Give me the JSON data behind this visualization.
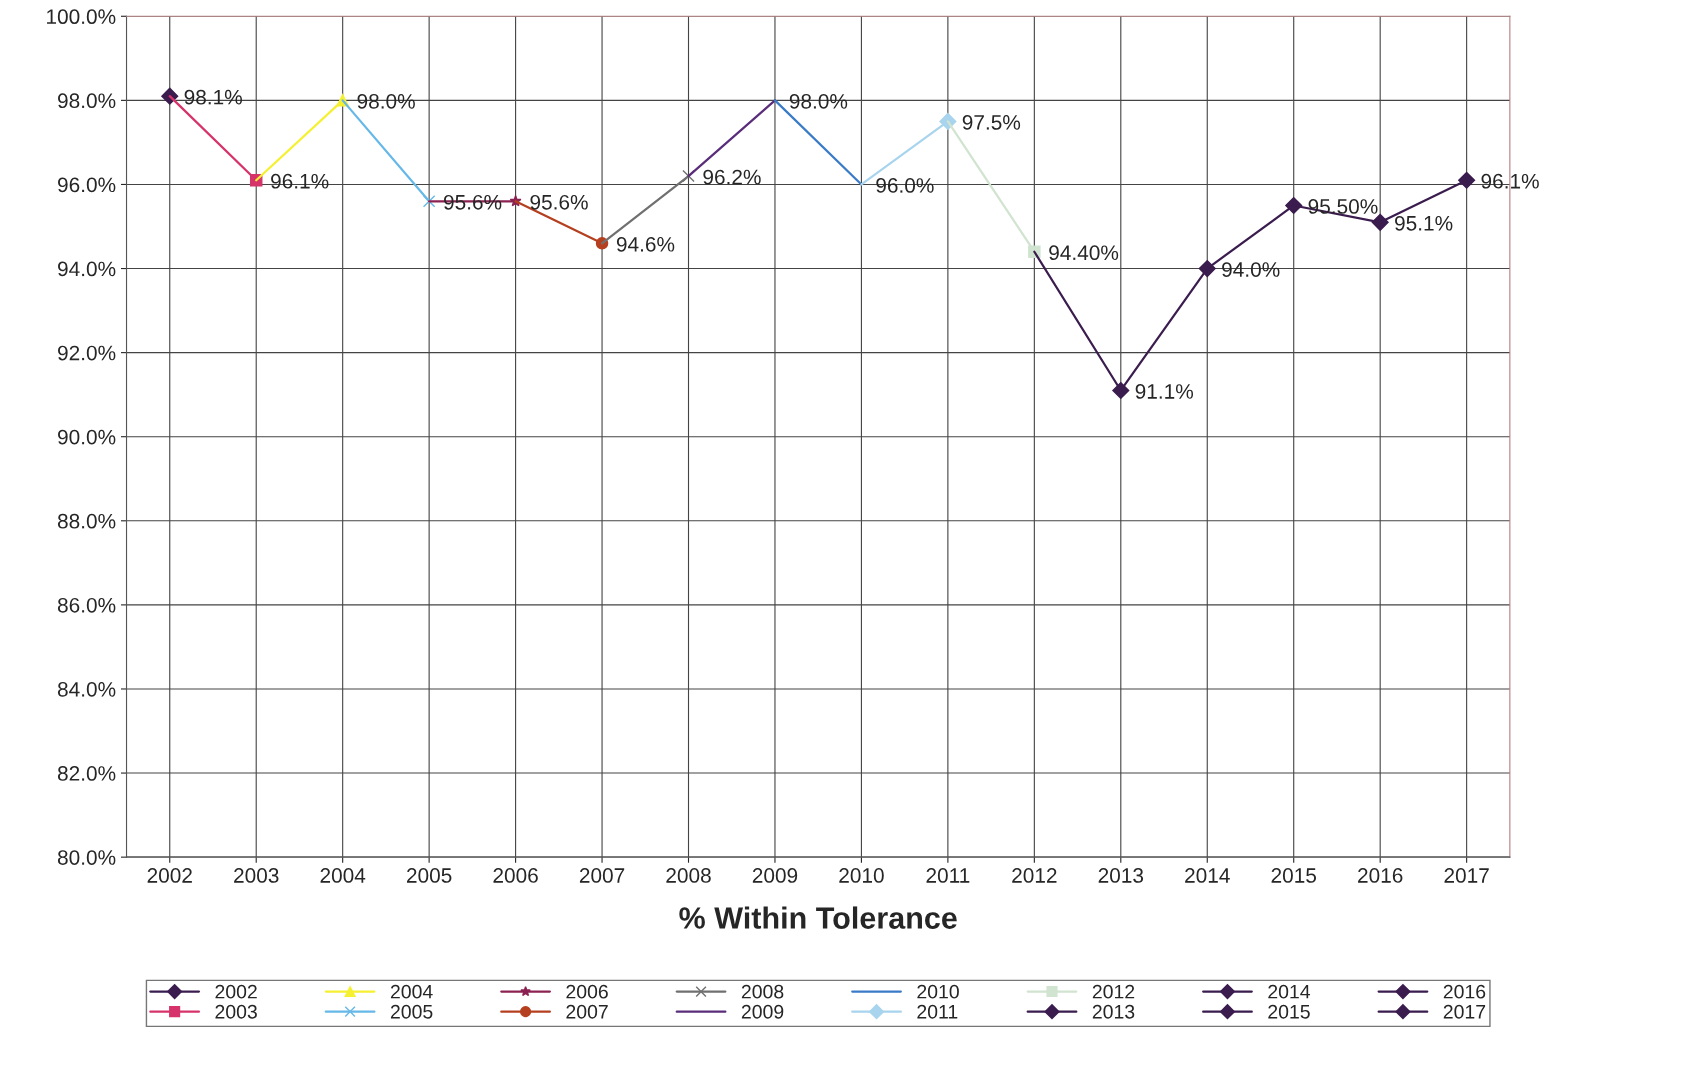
{
  "chart_data": {
    "type": "line",
    "xlabel": "% Within Tolerance",
    "categories": [
      "2002",
      "2003",
      "2004",
      "2005",
      "2006",
      "2007",
      "2008",
      "2009",
      "2010",
      "2011",
      "2012",
      "2013",
      "2014",
      "2015",
      "2016",
      "2017"
    ],
    "ylim": [
      80,
      100
    ],
    "yticks": [
      {
        "value": 80,
        "label": "80.0%"
      },
      {
        "value": 82,
        "label": "82.0%"
      },
      {
        "value": 84,
        "label": "84.0%"
      },
      {
        "value": 86,
        "label": "86.0%"
      },
      {
        "value": 88,
        "label": "88.0%"
      },
      {
        "value": 90,
        "label": "90.0%"
      },
      {
        "value": 92,
        "label": "92.0%"
      },
      {
        "value": 94,
        "label": "94.0%"
      },
      {
        "value": 96,
        "label": "96.0%"
      },
      {
        "value": 98,
        "label": "98.0%"
      },
      {
        "value": 100,
        "label": "100.0%"
      }
    ],
    "grid": true,
    "legend": "bottom",
    "series": [
      {
        "name": "2002",
        "color": "#3b1c4e",
        "marker": "diamond",
        "values": [
          98.1,
          null,
          null,
          null,
          null,
          null,
          null,
          null,
          null,
          null,
          null,
          null,
          null,
          null,
          null,
          null
        ],
        "value_labels": [
          "98.1%",
          null,
          null,
          null,
          null,
          null,
          null,
          null,
          null,
          null,
          null,
          null,
          null,
          null,
          null,
          null
        ]
      },
      {
        "name": "2003",
        "color": "#d6336b",
        "marker": "square",
        "values": [
          98.1,
          96.1,
          null,
          null,
          null,
          null,
          null,
          null,
          null,
          null,
          null,
          null,
          null,
          null,
          null,
          null
        ],
        "value_labels": [
          null,
          "96.1%",
          null,
          null,
          null,
          null,
          null,
          null,
          null,
          null,
          null,
          null,
          null,
          null,
          null,
          null
        ]
      },
      {
        "name": "2004",
        "color": "#f5f032",
        "marker": "triangle",
        "values": [
          null,
          96.1,
          98.0,
          null,
          null,
          null,
          null,
          null,
          null,
          null,
          null,
          null,
          null,
          null,
          null,
          null
        ],
        "value_labels": [
          null,
          null,
          "98.0%",
          null,
          null,
          null,
          null,
          null,
          null,
          null,
          null,
          null,
          null,
          null,
          null,
          null
        ]
      },
      {
        "name": "2005",
        "color": "#66b8e8",
        "marker": "cross",
        "values": [
          null,
          null,
          98.0,
          95.6,
          null,
          null,
          null,
          null,
          null,
          null,
          null,
          null,
          null,
          null,
          null,
          null
        ],
        "value_labels": [
          null,
          null,
          null,
          "95.6%",
          null,
          null,
          null,
          null,
          null,
          null,
          null,
          null,
          null,
          null,
          null,
          null
        ]
      },
      {
        "name": "2006",
        "color": "#8b2252",
        "marker": "star",
        "values": [
          null,
          null,
          null,
          95.6,
          95.6,
          null,
          null,
          null,
          null,
          null,
          null,
          null,
          null,
          null,
          null,
          null
        ],
        "value_labels": [
          null,
          null,
          null,
          null,
          "95.6%",
          null,
          null,
          null,
          null,
          null,
          null,
          null,
          null,
          null,
          null,
          null
        ]
      },
      {
        "name": "2007",
        "color": "#b5401f",
        "marker": "circle",
        "values": [
          null,
          null,
          null,
          null,
          95.6,
          94.6,
          null,
          null,
          null,
          null,
          null,
          null,
          null,
          null,
          null,
          null
        ],
        "value_labels": [
          null,
          null,
          null,
          null,
          null,
          "94.6%",
          null,
          null,
          null,
          null,
          null,
          null,
          null,
          null,
          null,
          null
        ]
      },
      {
        "name": "2008",
        "color": "#707070",
        "marker": "cross",
        "values": [
          null,
          null,
          null,
          null,
          null,
          94.6,
          96.2,
          null,
          null,
          null,
          null,
          null,
          null,
          null,
          null,
          null
        ],
        "value_labels": [
          null,
          null,
          null,
          null,
          null,
          null,
          "96.2%",
          null,
          null,
          null,
          null,
          null,
          null,
          null,
          null,
          null
        ]
      },
      {
        "name": "2009",
        "color": "#5a2d7a",
        "marker": "none",
        "values": [
          null,
          null,
          null,
          null,
          null,
          null,
          96.2,
          98.0,
          null,
          null,
          null,
          null,
          null,
          null,
          null,
          null
        ],
        "value_labels": [
          null,
          null,
          null,
          null,
          null,
          null,
          null,
          "98.0%",
          null,
          null,
          null,
          null,
          null,
          null,
          null,
          null
        ]
      },
      {
        "name": "2010",
        "color": "#3a7bc8",
        "marker": "none",
        "values": [
          null,
          null,
          null,
          null,
          null,
          null,
          null,
          98.0,
          96.0,
          null,
          null,
          null,
          null,
          null,
          null,
          null
        ],
        "value_labels": [
          null,
          null,
          null,
          null,
          null,
          null,
          null,
          null,
          "96.0%",
          null,
          null,
          null,
          null,
          null,
          null,
          null
        ]
      },
      {
        "name": "2011",
        "color": "#a8d4ee",
        "marker": "diamond",
        "values": [
          null,
          null,
          null,
          null,
          null,
          null,
          null,
          null,
          96.0,
          97.5,
          null,
          null,
          null,
          null,
          null,
          null
        ],
        "value_labels": [
          null,
          null,
          null,
          null,
          null,
          null,
          null,
          null,
          null,
          "97.5%",
          null,
          null,
          null,
          null,
          null,
          null
        ]
      },
      {
        "name": "2012",
        "color": "#d0e4d0",
        "marker": "square",
        "values": [
          null,
          null,
          null,
          null,
          null,
          null,
          null,
          null,
          null,
          97.5,
          94.4,
          null,
          null,
          null,
          null,
          null
        ],
        "value_labels": [
          null,
          null,
          null,
          null,
          null,
          null,
          null,
          null,
          null,
          null,
          "94.40%",
          null,
          null,
          null,
          null,
          null
        ]
      },
      {
        "name": "2013",
        "color": "#3b1c4e",
        "marker": "diamond",
        "values": [
          null,
          null,
          null,
          null,
          null,
          null,
          null,
          null,
          null,
          null,
          94.4,
          91.1,
          null,
          null,
          null,
          null
        ],
        "value_labels": [
          null,
          null,
          null,
          null,
          null,
          null,
          null,
          null,
          null,
          null,
          null,
          "91.1%",
          null,
          null,
          null,
          null
        ]
      },
      {
        "name": "2014",
        "color": "#3b1c4e",
        "marker": "diamond",
        "values": [
          null,
          null,
          null,
          null,
          null,
          null,
          null,
          null,
          null,
          null,
          null,
          91.1,
          94.0,
          null,
          null,
          null
        ],
        "value_labels": [
          null,
          null,
          null,
          null,
          null,
          null,
          null,
          null,
          null,
          null,
          null,
          null,
          "94.0%",
          null,
          null,
          null
        ]
      },
      {
        "name": "2015",
        "color": "#3b1c4e",
        "marker": "diamond",
        "values": [
          null,
          null,
          null,
          null,
          null,
          null,
          null,
          null,
          null,
          null,
          null,
          null,
          94.0,
          95.5,
          null,
          null
        ],
        "value_labels": [
          null,
          null,
          null,
          null,
          null,
          null,
          null,
          null,
          null,
          null,
          null,
          null,
          null,
          "95.50%",
          null,
          null
        ]
      },
      {
        "name": "2016",
        "color": "#3b1c4e",
        "marker": "diamond",
        "values": [
          null,
          null,
          null,
          null,
          null,
          null,
          null,
          null,
          null,
          null,
          null,
          null,
          null,
          95.5,
          95.1,
          null
        ],
        "value_labels": [
          null,
          null,
          null,
          null,
          null,
          null,
          null,
          null,
          null,
          null,
          null,
          null,
          null,
          null,
          "95.1%",
          null
        ]
      },
      {
        "name": "2017",
        "color": "#3b1c4e",
        "marker": "diamond",
        "values": [
          null,
          null,
          null,
          null,
          null,
          null,
          null,
          null,
          null,
          null,
          null,
          null,
          null,
          null,
          95.1,
          96.1
        ],
        "value_labels": [
          null,
          null,
          null,
          null,
          null,
          null,
          null,
          null,
          null,
          null,
          null,
          null,
          null,
          null,
          null,
          "96.1%"
        ]
      }
    ]
  }
}
